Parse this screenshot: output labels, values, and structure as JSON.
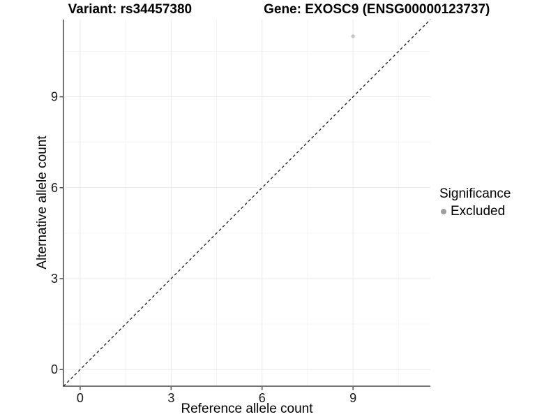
{
  "figure": {
    "background": "#ffffff"
  },
  "chart_data": {
    "type": "scatter",
    "title_left": "Variant: rs34457380",
    "title_right": "Gene: EXOSC9 (ENSG00000123737)",
    "xlabel": "Reference allele count",
    "ylabel": "Alternative allele count",
    "x_ticks": [
      0,
      3,
      6,
      9
    ],
    "y_ticks": [
      0,
      3,
      6,
      9
    ],
    "minor_gridlines": [
      1.5,
      4.5,
      7.5,
      10.5
    ],
    "xlim": [
      -0.55,
      11.55
    ],
    "ylim": [
      -0.55,
      11.55
    ],
    "grid": "major+minor",
    "legend_position": "right",
    "reference_line": {
      "kind": "identity",
      "slope": 1,
      "intercept": 0,
      "style": "dashed",
      "color": "#1a1a1a"
    },
    "points": [
      {
        "x": 9,
        "y": 11,
        "series": "Excluded",
        "color": "#c6c6c6",
        "radius": 2.7
      }
    ],
    "legend": {
      "title": "Significance",
      "entries": [
        {
          "label": "Excluded",
          "marker_color": "#9e9e9e"
        }
      ]
    },
    "colors": {
      "grid_major": "#e9e9e9",
      "grid_minor": "#f4f4f4",
      "axis_line": "#757575",
      "tick_mark": "#4d4d4d",
      "tick_label": "#1a1a1a"
    }
  }
}
